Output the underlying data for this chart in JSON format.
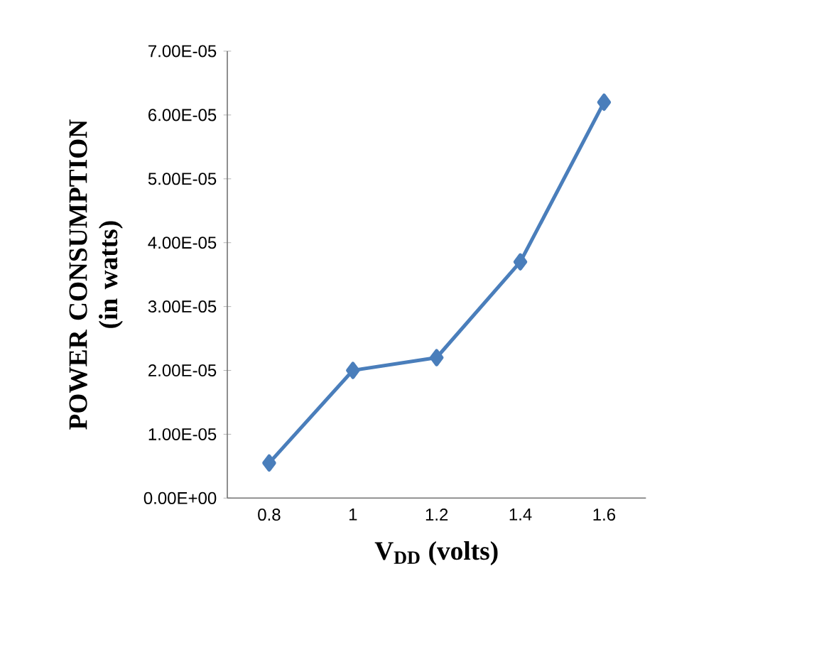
{
  "chart_data": {
    "type": "line",
    "xlabel": "V$_{DD}$ (volts)",
    "ylabel": "POWER CONSUMPTION (in watts)",
    "categories": [
      "0.8",
      "1",
      "1.2",
      "1.4",
      "1.6"
    ],
    "series": [
      {
        "color": "#4a7ebb",
        "values": [
          5.5e-06,
          2e-05,
          2.2e-05,
          3.7e-05,
          6.2e-05
        ]
      }
    ],
    "ylim": [
      0,
      7e-05
    ],
    "yticks": [
      {
        "value": 0,
        "label": "0.00E+00"
      },
      {
        "value": 1e-05,
        "label": "1.00E-05"
      },
      {
        "value": 2e-05,
        "label": "2.00E-05"
      },
      {
        "value": 3e-05,
        "label": "3.00E-05"
      },
      {
        "value": 4e-05,
        "label": "4.00E-05"
      },
      {
        "value": 5e-05,
        "label": "5.00E-05"
      },
      {
        "value": 6e-05,
        "label": "6.00E-05"
      },
      {
        "value": 7e-05,
        "label": "7.00E-05"
      }
    ],
    "grid": false,
    "legend": false,
    "marker": "diamond",
    "line_style": "solid"
  }
}
